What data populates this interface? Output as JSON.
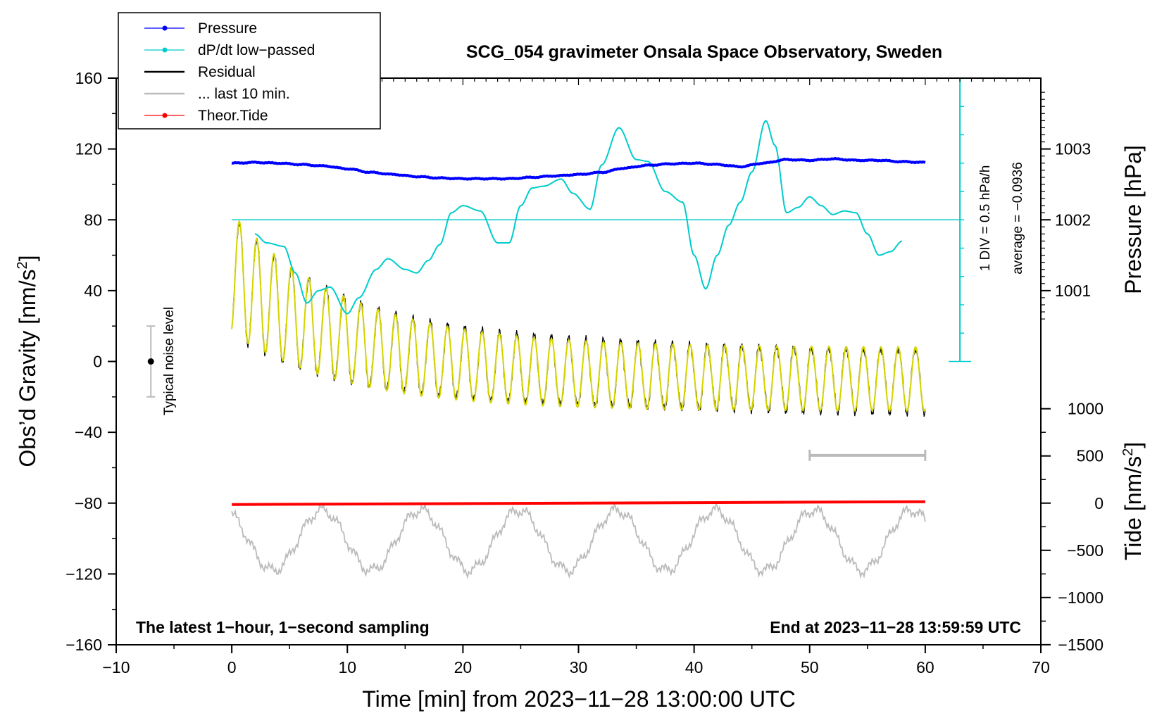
{
  "chart_data": {
    "type": "line",
    "title": "SCG_054 gravimeter Onsala Space Observatory, Sweden",
    "xlabel": "Time [min] from 2023−11−28 13:00:00 UTC",
    "ylabel_left": "Obs’d Gravity [nm/s²]",
    "ylabel_right_pressure": "Pressure [hPa]",
    "ylabel_right_tide": "Tide [nm/s²]",
    "xlim": [
      -10,
      70
    ],
    "ylim": [
      -160,
      160
    ],
    "x_ticks": [
      {
        "v": -10,
        "label": "−10"
      },
      {
        "v": 0,
        "label": "0"
      },
      {
        "v": 10,
        "label": "10"
      },
      {
        "v": 20,
        "label": "20"
      },
      {
        "v": 30,
        "label": "30"
      },
      {
        "v": 40,
        "label": "40"
      },
      {
        "v": 50,
        "label": "50"
      },
      {
        "v": 60,
        "label": "60"
      },
      {
        "v": 70,
        "label": "70"
      }
    ],
    "y_ticks": [
      {
        "v": 160,
        "label": "160"
      },
      {
        "v": 120,
        "label": "120"
      },
      {
        "v": 80,
        "label": "80"
      },
      {
        "v": 40,
        "label": "40"
      },
      {
        "v": 0,
        "label": "0"
      },
      {
        "v": -40,
        "label": "−40"
      },
      {
        "v": -80,
        "label": "−80"
      },
      {
        "v": -120,
        "label": "−120"
      },
      {
        "v": -160,
        "label": "−160"
      }
    ],
    "pressure_axis": {
      "ticks": [
        {
          "v": 1003,
          "label": "1003"
        },
        {
          "v": 1002,
          "label": "1002"
        },
        {
          "v": 1001,
          "label": "1001"
        }
      ],
      "gravity_at_1002": 80,
      "gravity_per_hPa": 40
    },
    "tide_axis": {
      "ticks": [
        {
          "v": 1000,
          "label": "1000"
        },
        {
          "v": 500,
          "label": "500"
        },
        {
          "v": 0,
          "label": "0"
        },
        {
          "v": -500,
          "label": "−500"
        },
        {
          "v": -1000,
          "label": "−1000"
        },
        {
          "v": -1500,
          "label": "−1500"
        }
      ],
      "gravity_at_zero": -80,
      "gravity_per_unit": 0.0533
    },
    "legend": [
      {
        "name": "Pressure",
        "color": "#0000ff",
        "marker": true
      },
      {
        "name": "dP/dt low−passed",
        "color": "#00cccc",
        "marker": true
      },
      {
        "name": "Residual",
        "color": "#000000",
        "marker": false
      },
      {
        "name": "... last 10 min.",
        "color": "#bbbbbb",
        "marker": false
      },
      {
        "name": "Theor.Tide",
        "color": "#ff0000",
        "marker": true
      }
    ],
    "series": [
      {
        "name": "Pressure",
        "color": "#0000ff",
        "x": [
          0,
          2,
          4,
          6,
          8,
          10,
          12,
          14,
          16,
          18,
          20,
          22,
          24,
          26,
          28,
          30,
          32,
          34,
          36,
          38,
          40,
          42,
          44,
          46,
          48,
          50,
          52,
          54,
          56,
          58,
          60
        ],
        "y": [
          1002.8,
          1002.81,
          1002.8,
          1002.78,
          1002.76,
          1002.72,
          1002.67,
          1002.64,
          1002.61,
          1002.59,
          1002.58,
          1002.58,
          1002.58,
          1002.6,
          1002.62,
          1002.64,
          1002.67,
          1002.73,
          1002.77,
          1002.79,
          1002.8,
          1002.78,
          1002.75,
          1002.8,
          1002.85,
          1002.84,
          1002.86,
          1002.84,
          1002.84,
          1002.82,
          1002.81
        ]
      },
      {
        "name": "dP/dt low−passed",
        "color": "#00cccc",
        "x": [
          2,
          3,
          4.5,
          5.5,
          6.5,
          7.5,
          8.5,
          10,
          11,
          12.5,
          13.5,
          15,
          16,
          17,
          18,
          19,
          20,
          21.5,
          23,
          24,
          25,
          26,
          27,
          28.5,
          29.5,
          31,
          32,
          33.5,
          35,
          36,
          37.5,
          39,
          40,
          41,
          42,
          43,
          44,
          45,
          46.2,
          47,
          48,
          49,
          50,
          51,
          52,
          53,
          54,
          55,
          56,
          57,
          58
        ],
        "y": [
          72,
          67,
          65,
          50,
          33,
          40,
          42,
          27,
          36,
          52,
          58,
          52,
          50,
          57,
          66,
          84,
          88,
          85,
          67,
          67,
          88,
          98,
          99,
          103,
          95,
          86,
          111,
          132,
          114,
          113,
          96,
          90,
          60,
          41,
          60,
          77,
          90,
          107,
          136,
          122,
          84,
          87,
          93,
          88,
          83,
          85,
          84,
          72,
          60,
          62,
          68
        ]
      },
      {
        "name": "Residual",
        "color": "#000000",
        "oscillation": {
          "period_min": 1.5,
          "amplitude_start": 34,
          "amplitude_end": 18,
          "offset_start": 50,
          "offset_end": -10
        }
      },
      {
        "name": "... last 10 min.",
        "color": "#bbbbbb",
        "oscillation": {
          "period_min": 8.5,
          "center": -101,
          "amplitude": 17
        }
      },
      {
        "name": "Theor.Tide",
        "color": "#ff0000",
        "x": [
          0,
          60
        ],
        "y_tide": [
          -15,
          15
        ]
      }
    ],
    "noise_level": {
      "label": "Typical noise level",
      "x": -7,
      "y": 0,
      "half_range": 20
    },
    "pressure_scale_bar": {
      "label": "1 DIV = 0.5 hPa/h",
      "x": 63,
      "y_from": 0,
      "y_to": 160
    },
    "pressure_average_label": "average = −0.0936",
    "window_bar": {
      "x_from": 50,
      "x_to": 60,
      "y": -53
    },
    "notes": {
      "left": "The latest 1−hour, 1−second sampling",
      "right": "End at 2023−11−28 13:59:59 UTC"
    }
  }
}
